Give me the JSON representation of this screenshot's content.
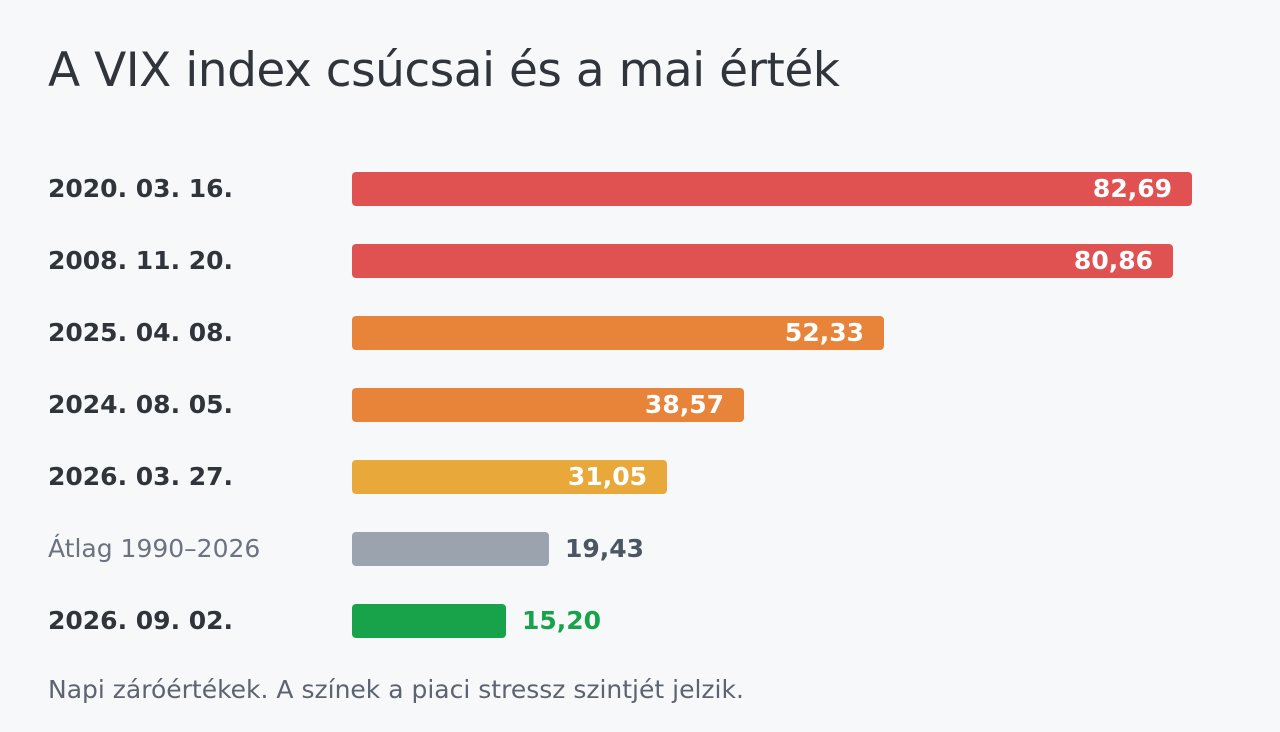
{
  "title": "A VIX index csúcsai és a mai érték",
  "footnote": "Napi záróértékek. A színek a piaci stressz szintjét jelzik.",
  "chart_data": {
    "type": "bar",
    "orientation": "horizontal",
    "title": "A VIX index csúcsai és a mai érték",
    "categories": [
      "2020. 03. 16.",
      "2008. 11. 20.",
      "2025. 04. 08.",
      "2024. 08. 05.",
      "2026. 03. 27.",
      "Átlag 1990–2026",
      "2026. 09. 02."
    ],
    "values": [
      82.69,
      80.86,
      52.33,
      38.57,
      31.05,
      19.43,
      15.2
    ],
    "value_labels": [
      "82,69",
      "80,86",
      "52,33",
      "38,57",
      "31,05",
      "19,43",
      "15,20"
    ],
    "colors": [
      "#e05151",
      "#e05151",
      "#e8833a",
      "#e8833a",
      "#e8a83a",
      "#9aa3ae",
      "#18a34a"
    ],
    "label_style": [
      "bold",
      "bold",
      "bold",
      "bold",
      "bold",
      "muted",
      "bold"
    ],
    "value_label_colors": [
      "#ffffff",
      "#ffffff",
      "#ffffff",
      "#ffffff",
      "#ffffff",
      "#4b5563",
      "#18a34a"
    ],
    "xlim": [
      0,
      82.69
    ],
    "grid": false,
    "xlabel": "",
    "ylabel": ""
  }
}
